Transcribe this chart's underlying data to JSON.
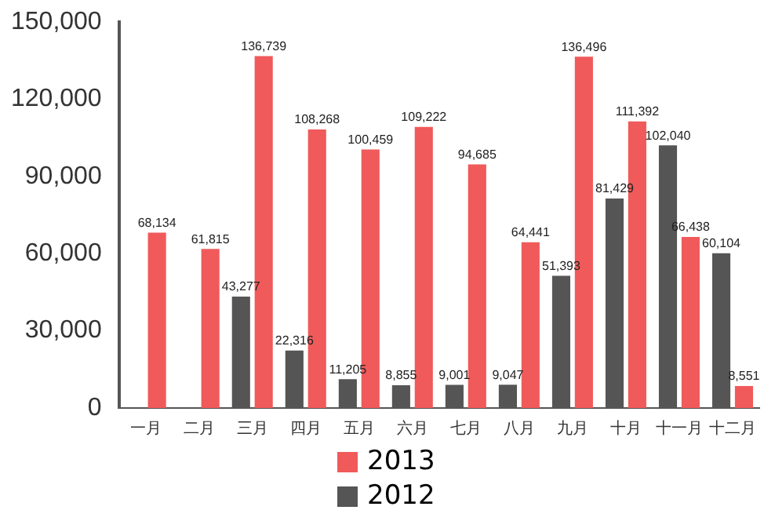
{
  "chart_data": {
    "type": "bar",
    "categories": [
      "一月",
      "二月",
      "三月",
      "四月",
      "五月",
      "六月",
      "七月",
      "八月",
      "九月",
      "十月",
      "十一月",
      "十二月"
    ],
    "series": [
      {
        "name": "2013",
        "color": "#f05a5a",
        "values": [
          68134,
          61815,
          136739,
          108268,
          100459,
          109222,
          94685,
          64441,
          136496,
          111392,
          66438,
          8551
        ],
        "value_labels": [
          "68,134",
          "61,815",
          "136,739",
          "108,268",
          "100,459",
          "109,222",
          "94,685",
          "64,441",
          "136,496",
          "111,392",
          "66,438",
          "8,551"
        ]
      },
      {
        "name": "2012",
        "color": "#555555",
        "values": [
          null,
          null,
          43277,
          22316,
          11205,
          8855,
          9001,
          9047,
          51393,
          81429,
          102040,
          60104
        ],
        "value_labels": [
          null,
          null,
          "43,277",
          "22,316",
          "11,205",
          "8,855",
          "9,001",
          "9,047",
          "51,393",
          "81,429",
          "102,040",
          "60,104"
        ]
      }
    ],
    "ylim": [
      0,
      150000
    ],
    "yticks": [
      {
        "value": 0,
        "label": "0"
      },
      {
        "value": 30000,
        "label": "30,000"
      },
      {
        "value": 60000,
        "label": "60,000"
      },
      {
        "value": 90000,
        "label": "90,000"
      },
      {
        "value": 120000,
        "label": "120,000"
      },
      {
        "value": 150000,
        "label": "150,000"
      }
    ],
    "grid": false,
    "legend": "bottom"
  }
}
